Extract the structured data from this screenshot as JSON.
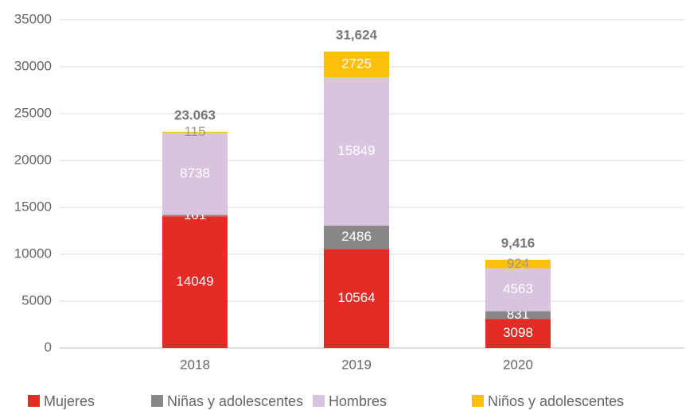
{
  "chart_data": {
    "type": "stacked_bar",
    "categories": [
      "2018",
      "2019",
      "2020"
    ],
    "series": [
      {
        "name": "Mujeres",
        "color": "#e32c26",
        "values": [
          14049,
          10564,
          3098
        ]
      },
      {
        "name": "Niñas y adolescentes",
        "color": "#878787",
        "values": [
          161,
          2486,
          831
        ]
      },
      {
        "name": "Hombres",
        "color": "#d9c4e0",
        "values": [
          8738,
          15849,
          4563
        ]
      },
      {
        "name": "Niños y adolescentes",
        "color": "#fcbf0a",
        "values": [
          115,
          2725,
          924
        ]
      }
    ],
    "annotations": [
      "23.063",
      "31,624",
      "9,416"
    ],
    "ylim": [
      0,
      35000
    ],
    "yticks": [
      0,
      5000,
      10000,
      15000,
      20000,
      25000,
      30000,
      35000
    ],
    "grid": true,
    "legend": "bottom"
  }
}
